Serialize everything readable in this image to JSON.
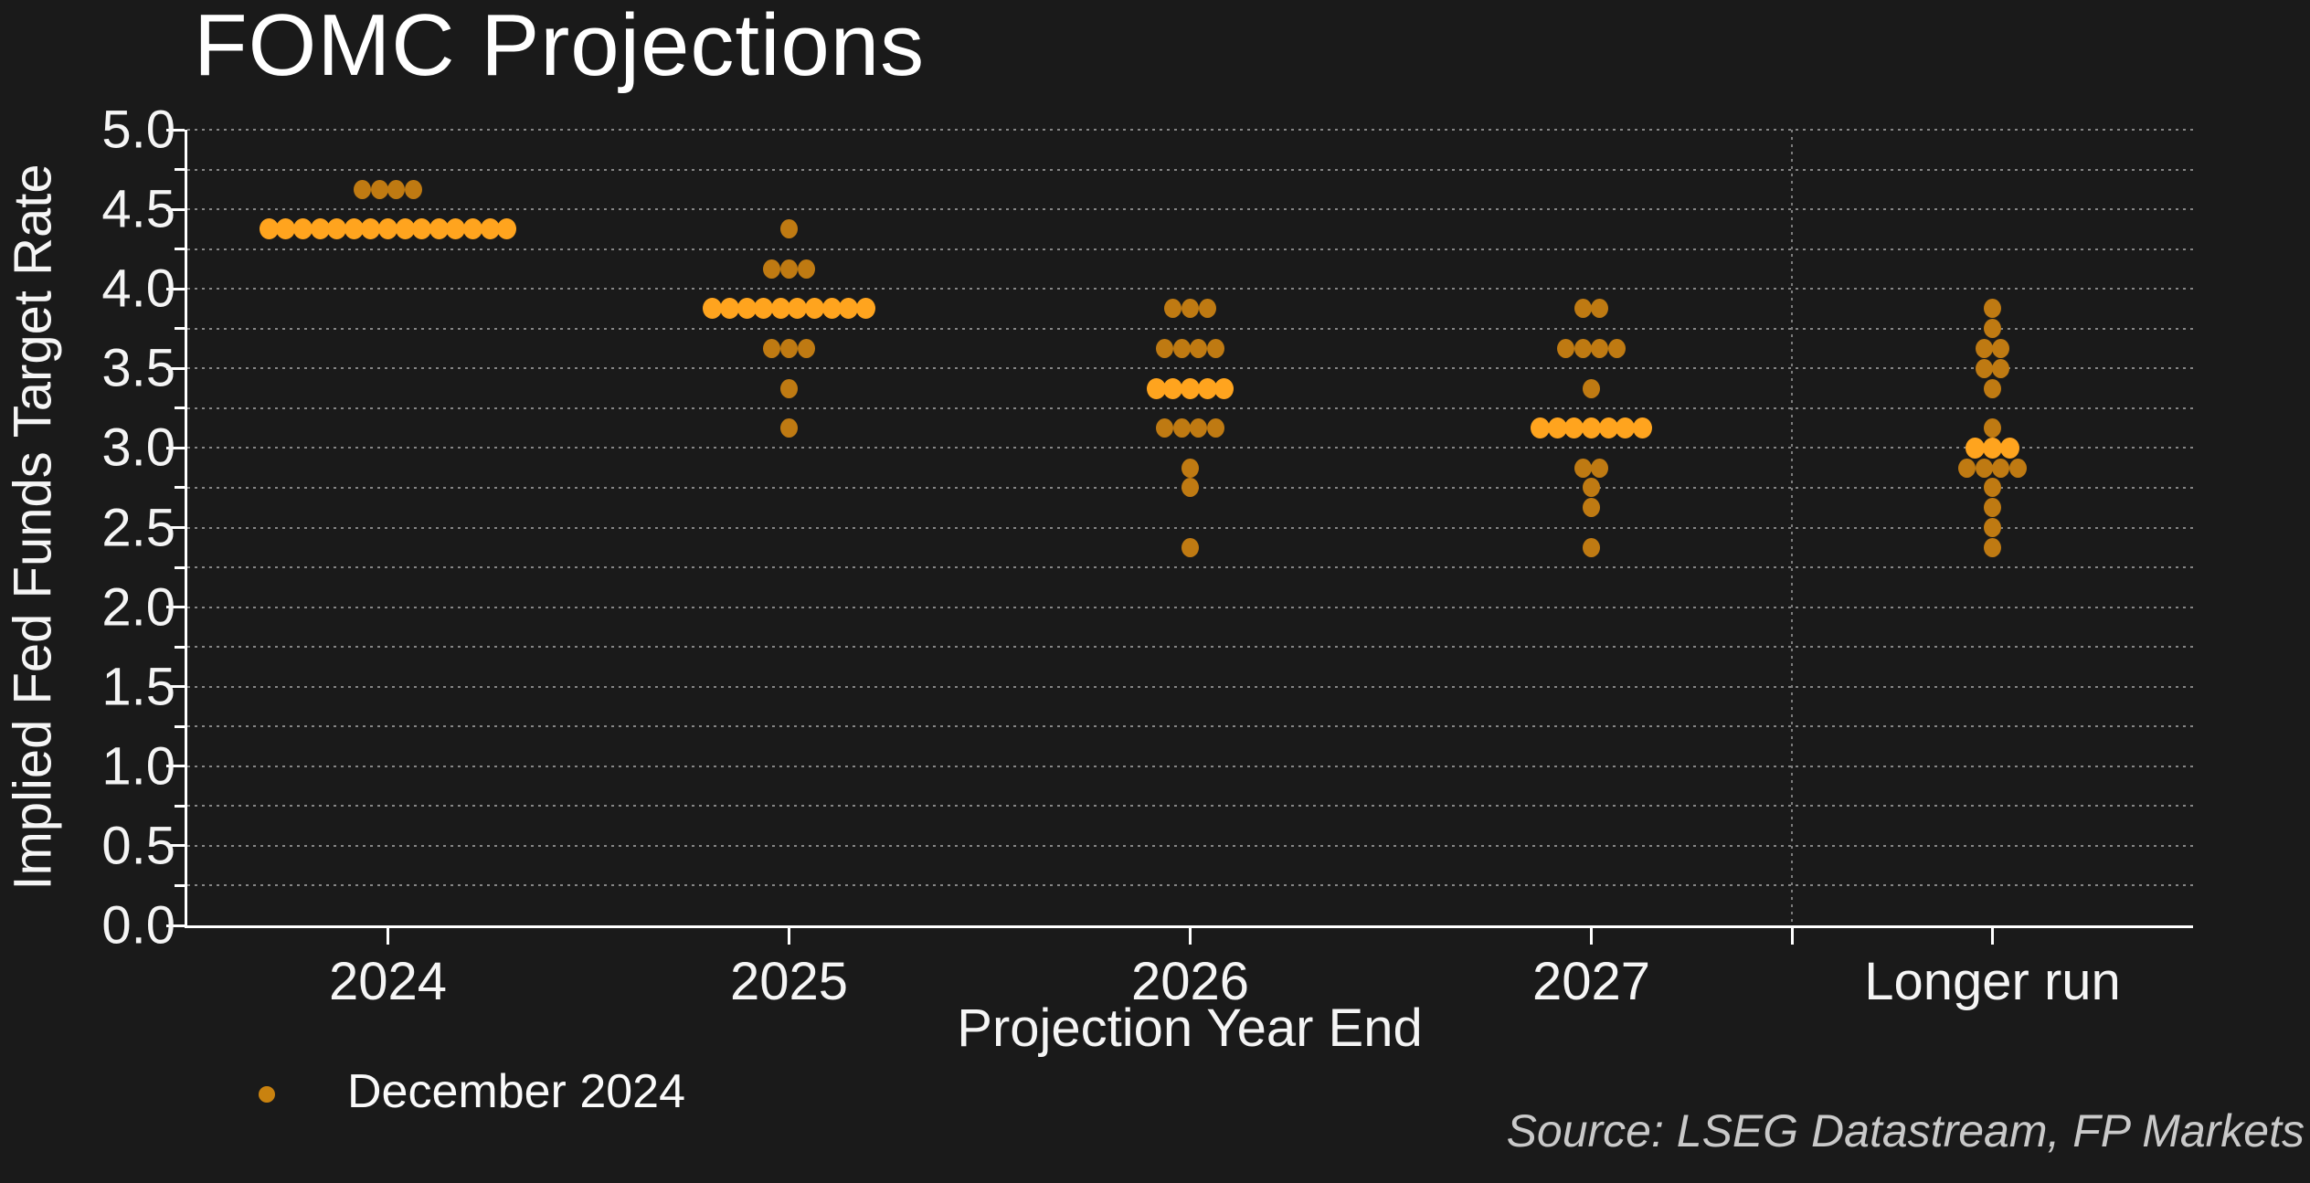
{
  "chart_data": {
    "type": "scatter",
    "subtype": "fomc-dot-plot",
    "title": "FOMC Projections",
    "xlabel": "Projection Year End",
    "ylabel": "Implied Fed Funds Target Rate",
    "ylim": [
      0.0,
      5.0
    ],
    "ytick_labels": [
      "5.0",
      "4.5",
      "4.0",
      "3.5",
      "3.0",
      "2.5",
      "2.0",
      "1.5",
      "1.0",
      "0.5",
      "0.0"
    ],
    "ytick_step": 0.5,
    "grid_interval": 0.25,
    "grid_style": "dotted",
    "categories": [
      "2024",
      "2025",
      "2026",
      "2027",
      "Longer run"
    ],
    "separator_between": [
      "2027",
      "Longer run"
    ],
    "legend": {
      "label": "December 2024",
      "position": "bottom-left"
    },
    "source": "Source: LSEG Datastream, FP Markets",
    "colors": {
      "background": "#1a1a1a",
      "dot": "#bf7a12",
      "dot_median": "#ffa41e",
      "grid": "#9a9a9a",
      "axis": "#ffffff",
      "text": "#f5f5f5",
      "source_text": "#c9c9c9"
    },
    "series": [
      {
        "category": "2024",
        "stacks": [
          {
            "rate": 4.625,
            "count": 4,
            "median": false
          },
          {
            "rate": 4.375,
            "count": 15,
            "median": true
          }
        ]
      },
      {
        "category": "2025",
        "stacks": [
          {
            "rate": 4.375,
            "count": 1,
            "median": false
          },
          {
            "rate": 4.125,
            "count": 3,
            "median": false
          },
          {
            "rate": 3.875,
            "count": 10,
            "median": true
          },
          {
            "rate": 3.625,
            "count": 3,
            "median": false
          },
          {
            "rate": 3.375,
            "count": 1,
            "median": false
          },
          {
            "rate": 3.125,
            "count": 1,
            "median": false
          }
        ]
      },
      {
        "category": "2026",
        "stacks": [
          {
            "rate": 3.875,
            "count": 3,
            "median": false
          },
          {
            "rate": 3.625,
            "count": 4,
            "median": false
          },
          {
            "rate": 3.375,
            "count": 5,
            "median": true
          },
          {
            "rate": 3.125,
            "count": 4,
            "median": false
          },
          {
            "rate": 2.875,
            "count": 1,
            "median": false
          },
          {
            "rate": 2.75,
            "count": 1,
            "median": false
          },
          {
            "rate": 2.375,
            "count": 1,
            "median": false
          }
        ]
      },
      {
        "category": "2027",
        "stacks": [
          {
            "rate": 3.875,
            "count": 2,
            "median": false
          },
          {
            "rate": 3.625,
            "count": 4,
            "median": false
          },
          {
            "rate": 3.375,
            "count": 1,
            "median": false
          },
          {
            "rate": 3.125,
            "count": 7,
            "median": true
          },
          {
            "rate": 2.875,
            "count": 2,
            "median": false
          },
          {
            "rate": 2.75,
            "count": 1,
            "median": false
          },
          {
            "rate": 2.625,
            "count": 1,
            "median": false
          },
          {
            "rate": 2.375,
            "count": 1,
            "median": false
          }
        ]
      },
      {
        "category": "Longer run",
        "stacks": [
          {
            "rate": 3.875,
            "count": 1,
            "median": false
          },
          {
            "rate": 3.75,
            "count": 1,
            "median": false
          },
          {
            "rate": 3.625,
            "count": 2,
            "median": false
          },
          {
            "rate": 3.5,
            "count": 2,
            "median": false
          },
          {
            "rate": 3.375,
            "count": 1,
            "median": false
          },
          {
            "rate": 3.125,
            "count": 1,
            "median": false
          },
          {
            "rate": 3.0,
            "count": 3,
            "median": true
          },
          {
            "rate": 2.875,
            "count": 4,
            "median": false
          },
          {
            "rate": 2.75,
            "count": 1,
            "median": false
          },
          {
            "rate": 2.625,
            "count": 1,
            "median": false
          },
          {
            "rate": 2.5,
            "count": 1,
            "median": false
          },
          {
            "rate": 2.375,
            "count": 1,
            "median": false
          }
        ]
      }
    ]
  }
}
